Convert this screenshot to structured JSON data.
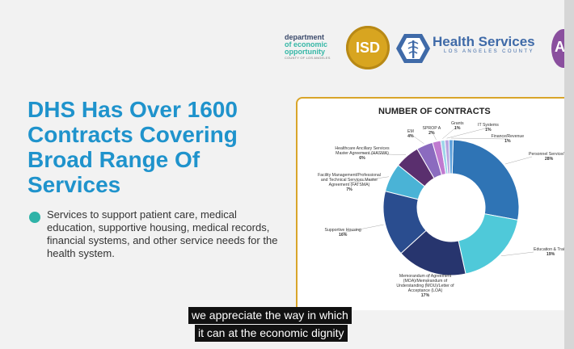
{
  "logos": {
    "deo": {
      "line1": "department",
      "line2": "of economic",
      "line3": "opportunity",
      "line4": "COUNTY OF LOS ANGELES"
    },
    "isd": "ISD",
    "health_services": {
      "title": "Health Services",
      "subtitle": "LOS ANGELES COUNTY"
    }
  },
  "slide": {
    "title_lines": [
      "DHS Has Over 1600",
      "Contracts Covering",
      "Broad Range Of",
      "Services"
    ],
    "bullet": "Services to support patient care, medical education, supportive housing, medical records, financial systems, and other service needs for the health system."
  },
  "chart_data": {
    "type": "pie",
    "title": "NUMBER OF CONTRACTS",
    "donut": true,
    "slices": [
      {
        "label": "Personnel Service/Re",
        "value": 28,
        "pct": "28%",
        "color": "#2f74b5"
      },
      {
        "label": "Education & Traini",
        "value": 19,
        "pct": "19%",
        "color": "#4fc9d9"
      },
      {
        "label": "Memorandum of Agreement (MOA)/Memorandum of Understanding (MOU)/Letter of Acceptance (LOA)",
        "value": 17,
        "pct": "17%",
        "color": "#27356e"
      },
      {
        "label": "Supportive Housing",
        "value": 16,
        "pct": "16%",
        "color": "#2a4d8f"
      },
      {
        "label": "Facility Management/Professional and Technical Services Master Agreement (FATSMA)",
        "value": 7,
        "pct": "7%",
        "color": "#4ab3d6"
      },
      {
        "label": "Healthcare Ancillary Services Master Agreement (HASMA)",
        "value": 6,
        "pct": "6%",
        "color": "#5a2f6e"
      },
      {
        "label": "EM",
        "value": 4,
        "pct": "4%",
        "color": "#8b6bbf"
      },
      {
        "label": "SPROP A",
        "value": 2,
        "pct": "2%",
        "color": "#c07ad0"
      },
      {
        "label": "Grants",
        "value": 1,
        "pct": "1%",
        "color": "#9fd6ea"
      },
      {
        "label": "IT Systems",
        "value": 1,
        "pct": "1%",
        "color": "#b9a6e0"
      },
      {
        "label": "Finance/Revenue",
        "value": 1,
        "pct": "1%",
        "color": "#5fa2dd"
      }
    ]
  },
  "captions": [
    "we appreciate the way in which",
    "it can at the economic dignity"
  ]
}
